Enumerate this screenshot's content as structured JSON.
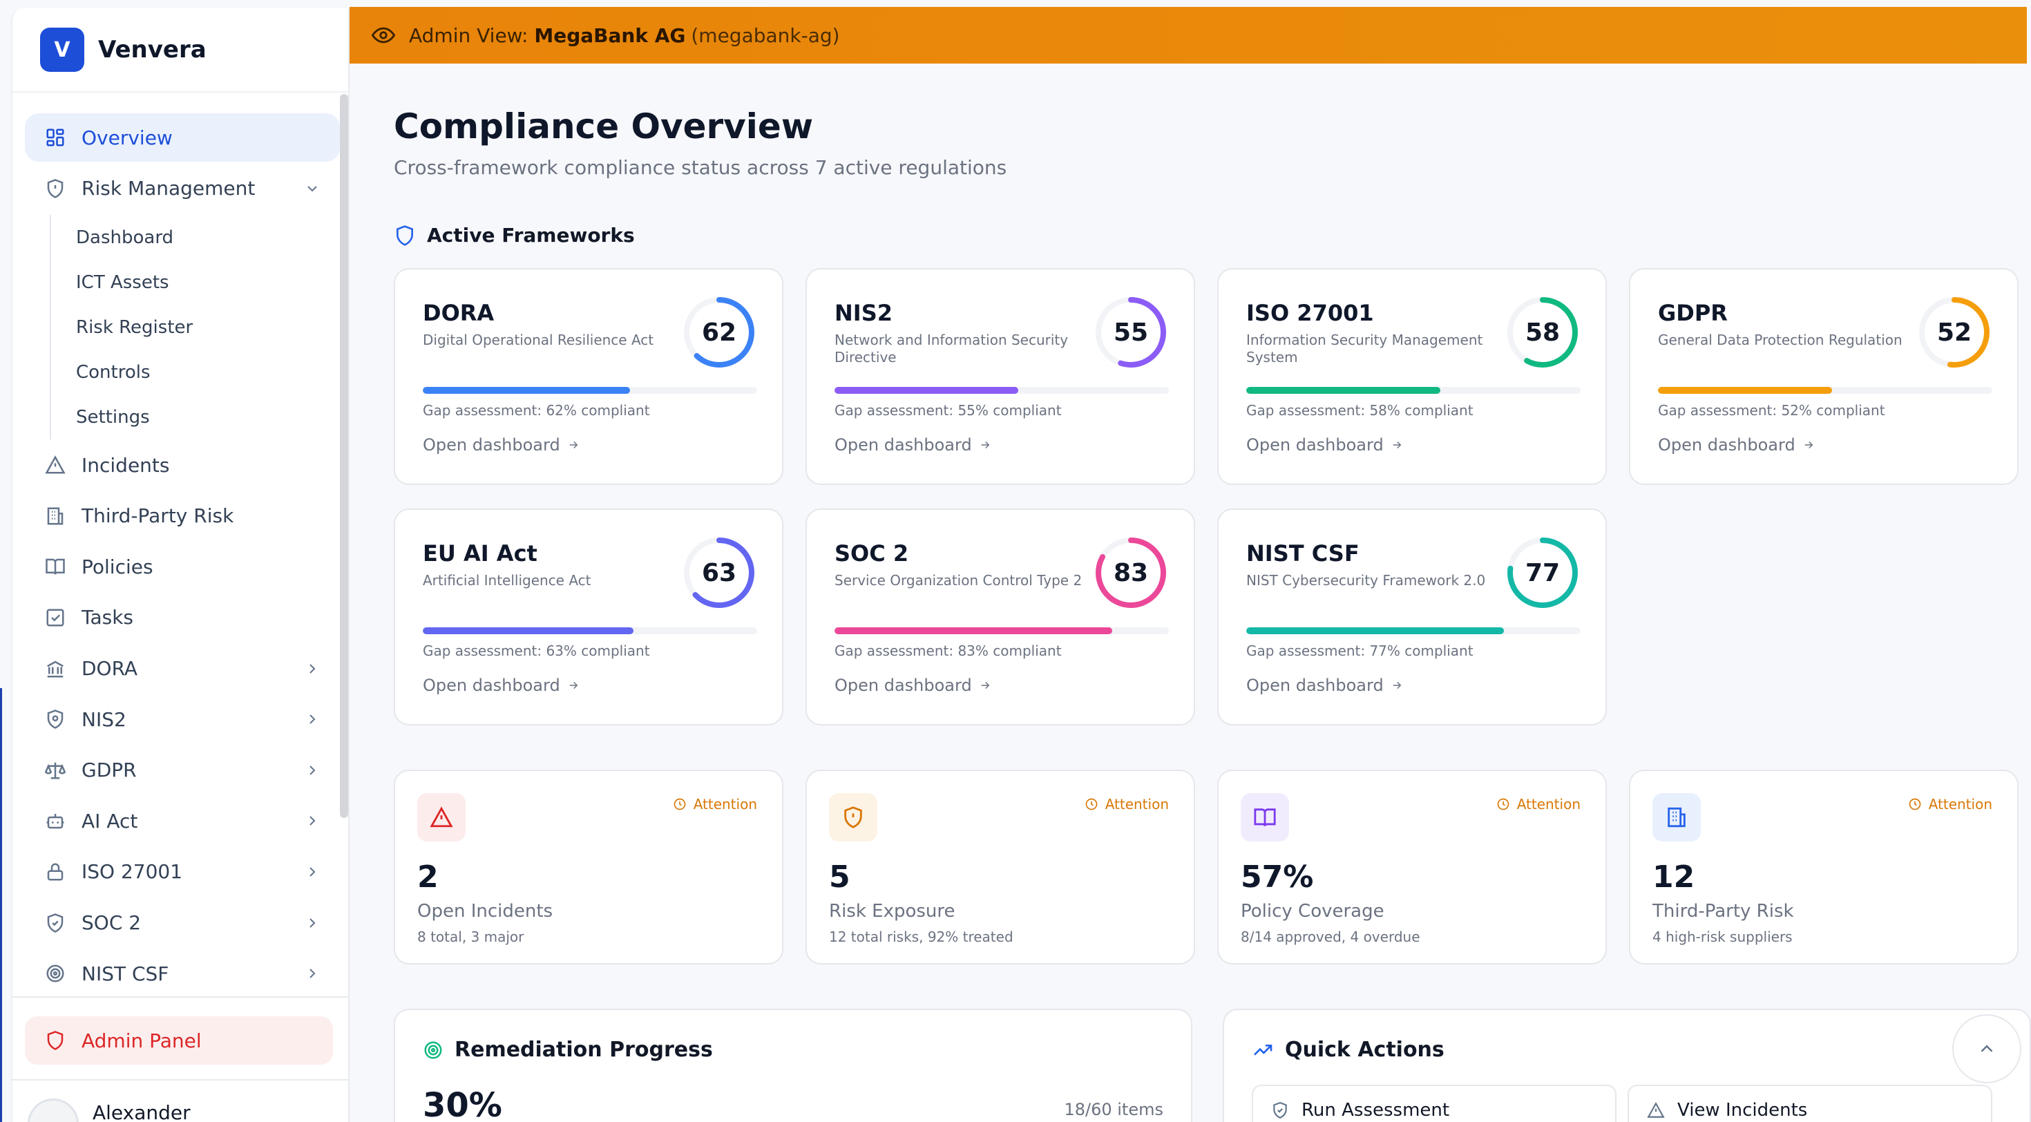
{
  "brand": {
    "logo_letter": "V",
    "name": "Venvera"
  },
  "sidebar": {
    "items": [
      {
        "label": "Overview",
        "icon": "grid-icon",
        "active": true
      },
      {
        "label": "Risk Management",
        "icon": "shield-alert-icon",
        "expanded": true,
        "children": [
          "Dashboard",
          "ICT Assets",
          "Risk Register",
          "Controls",
          "Settings"
        ]
      },
      {
        "label": "Incidents",
        "icon": "warning-triangle-icon"
      },
      {
        "label": "Third-Party Risk",
        "icon": "building-icon"
      },
      {
        "label": "Policies",
        "icon": "book-icon"
      },
      {
        "label": "Tasks",
        "icon": "checkbox-icon"
      },
      {
        "label": "DORA",
        "icon": "bank-icon"
      },
      {
        "label": "NIS2",
        "icon": "shield-icon"
      },
      {
        "label": "GDPR",
        "icon": "scale-icon"
      },
      {
        "label": "AI Act",
        "icon": "bot-icon"
      },
      {
        "label": "ISO 27001",
        "icon": "lock-icon"
      },
      {
        "label": "SOC 2",
        "icon": "shield-check-icon"
      },
      {
        "label": "NIST CSF",
        "icon": "target-icon"
      }
    ],
    "admin_label": "Admin Panel",
    "user_name": "Alexander"
  },
  "banner": {
    "prefix": "Admin View:",
    "org_name": "MegaBank AG",
    "org_slug": "(megabank-ag)"
  },
  "page": {
    "title": "Compliance Overview",
    "subtitle": "Cross-framework compliance status across 7 active regulations",
    "frameworks_heading": "Active Frameworks"
  },
  "frameworks": [
    {
      "name": "DORA",
      "desc": "Digital Operational Resilience Act",
      "score": 62,
      "gap": "Gap assessment: 62% compliant",
      "link": "Open dashboard",
      "color": "#3b82f6"
    },
    {
      "name": "NIS2",
      "desc": "Network and Information Security Directive",
      "score": 55,
      "gap": "Gap assessment: 55% compliant",
      "link": "Open dashboard",
      "color": "#8b5cf6"
    },
    {
      "name": "ISO 27001",
      "desc": "Information Security Management System",
      "score": 58,
      "gap": "Gap assessment: 58% compliant",
      "link": "Open dashboard",
      "color": "#10b981"
    },
    {
      "name": "GDPR",
      "desc": "General Data Protection Regulation",
      "score": 52,
      "gap": "Gap assessment: 52% compliant",
      "link": "Open dashboard",
      "color": "#f59e0b"
    },
    {
      "name": "EU AI Act",
      "desc": "Artificial Intelligence Act",
      "score": 63,
      "gap": "Gap assessment: 63% compliant",
      "link": "Open dashboard",
      "color": "#6366f1"
    },
    {
      "name": "SOC 2",
      "desc": "Service Organization Control Type 2",
      "score": 83,
      "gap": "Gap assessment: 83% compliant",
      "link": "Open dashboard",
      "color": "#ec4899"
    },
    {
      "name": "NIST CSF",
      "desc": "NIST Cybersecurity Framework 2.0",
      "score": 77,
      "gap": "Gap assessment: 77% compliant",
      "link": "Open dashboard",
      "color": "#14b8a6"
    }
  ],
  "metrics": [
    {
      "value": "2",
      "label": "Open Incidents",
      "sub": "8 total, 3 major",
      "badge": "Attention",
      "icon": "warning-triangle-icon",
      "color": "#dc2626",
      "bg": "#fdecec"
    },
    {
      "value": "5",
      "label": "Risk Exposure",
      "sub": "12 total risks, 92% treated",
      "badge": "Attention",
      "icon": "shield-alert-icon",
      "color": "#d97706",
      "bg": "#fdf3e4"
    },
    {
      "value": "57%",
      "label": "Policy Coverage",
      "sub": "8/14 approved, 4 overdue",
      "badge": "Attention",
      "icon": "book-icon",
      "color": "#7c3aed",
      "bg": "#f1ecfd"
    },
    {
      "value": "12",
      "label": "Third-Party Risk",
      "sub": "4 high-risk suppliers",
      "badge": "Attention",
      "icon": "building-icon",
      "color": "#2563eb",
      "bg": "#e9f0fd"
    }
  ],
  "remediation": {
    "title": "Remediation Progress",
    "percent": "30%",
    "items": "18/60 items"
  },
  "quick_actions": {
    "title": "Quick Actions",
    "buttons": [
      "Run Assessment",
      "View Incidents"
    ]
  }
}
